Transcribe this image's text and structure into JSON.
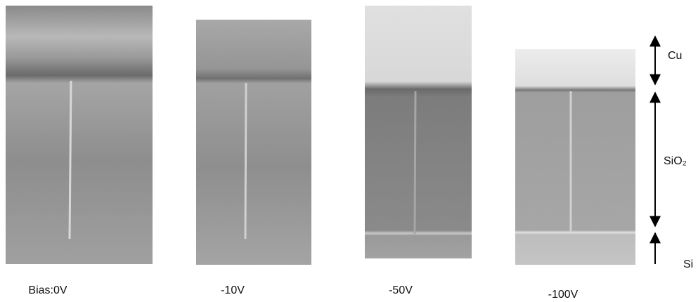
{
  "panels": [
    {
      "label": "Bias:0V"
    },
    {
      "label": "-10V"
    },
    {
      "label": "-50V"
    },
    {
      "label": "-100V"
    }
  ],
  "layers": [
    {
      "label": "Cu"
    },
    {
      "label": "SiO₂"
    },
    {
      "label": "Si"
    }
  ]
}
